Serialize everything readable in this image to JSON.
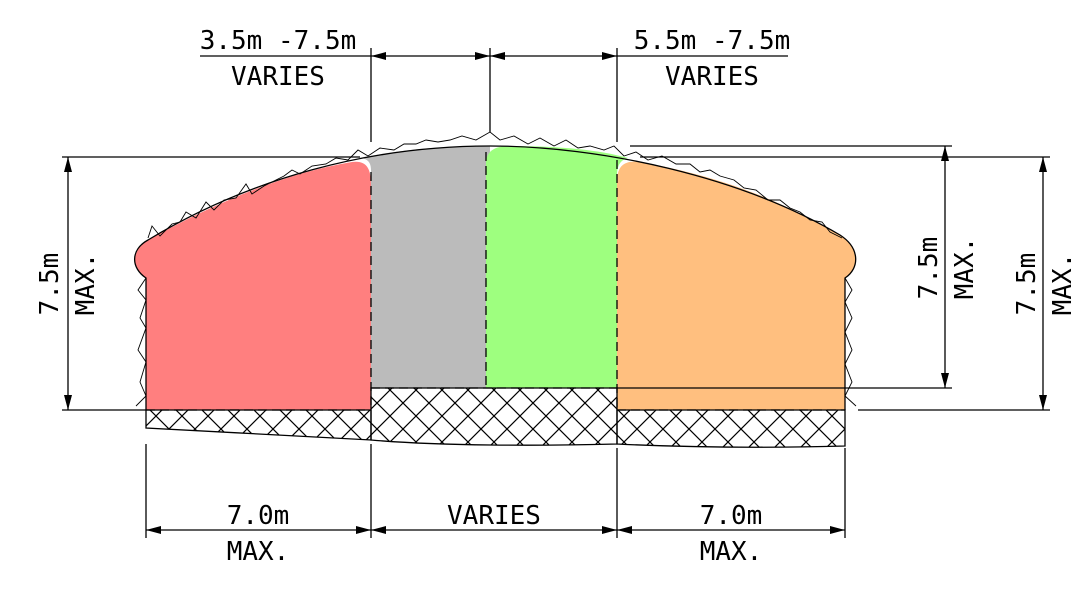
{
  "labels": {
    "top_left_range": "3.5m -7.5m",
    "top_left_note": "VARIES",
    "top_right_range": "5.5m -7.5m",
    "top_right_note": "VARIES",
    "height_left_value": "7.5m",
    "height_left_note": "MAX.",
    "height_mid_value": "7.5m",
    "height_mid_note": "MAX.",
    "height_right_value": "7.5m",
    "height_right_note": "MAX.",
    "bottom_left_value": "7.0m",
    "bottom_left_note": "MAX.",
    "bottom_mid_note": "VARIES",
    "bottom_right_value": "7.0m",
    "bottom_right_note": "MAX."
  },
  "colors": {
    "zone_left": "#ff7f7f",
    "zone_center": "#bbbbbb",
    "zone_center_right": "#9eff7f",
    "zone_right": "#ffbf7f",
    "line": "#000000"
  }
}
